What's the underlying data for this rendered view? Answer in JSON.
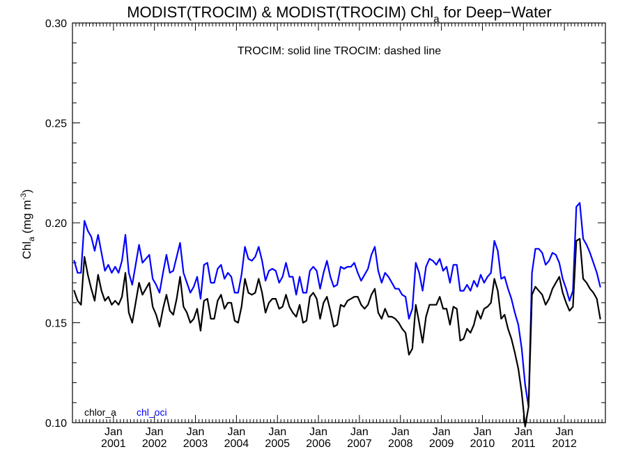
{
  "chart_data": {
    "type": "line",
    "title": {
      "main": "MODIST(TROCIM) & MODIST(TROCIM)  Chl",
      "sub": "a",
      "suffix": " for Deep−Water"
    },
    "annotation": "TROCIM: solid line   TROCIM: dashed line",
    "ylabel": {
      "main": "Chl",
      "sub": "a",
      "mid": " (mg m",
      "sup": "-3",
      "end": ")"
    },
    "ylim": [
      0.1,
      0.3
    ],
    "yticks": [
      "0.10",
      "0.15",
      "0.20",
      "0.25",
      "0.30"
    ],
    "x_start": "2000-01",
    "x_end": "2013-01",
    "xticks": [
      {
        "month": "Jan",
        "year": "2001",
        "date": "2001-01"
      },
      {
        "month": "Jan",
        "year": "2002",
        "date": "2002-01"
      },
      {
        "month": "Jan",
        "year": "2003",
        "date": "2003-01"
      },
      {
        "month": "Jan",
        "year": "2004",
        "date": "2004-01"
      },
      {
        "month": "Jan",
        "year": "2005",
        "date": "2005-01"
      },
      {
        "month": "Jan",
        "year": "2006",
        "date": "2006-01"
      },
      {
        "month": "Jan",
        "year": "2007",
        "date": "2007-01"
      },
      {
        "month": "Jan",
        "year": "2008",
        "date": "2008-01"
      },
      {
        "month": "Jan",
        "year": "2009",
        "date": "2009-01"
      },
      {
        "month": "Jan",
        "year": "2010",
        "date": "2010-01"
      },
      {
        "month": "Jan",
        "year": "2011",
        "date": "2011-01"
      },
      {
        "month": "Jan",
        "year": "2012",
        "date": "2012-01"
      }
    ],
    "grid": false,
    "legend_placement": "bottom-left",
    "series": [
      {
        "name": "chlor_a",
        "color": "#000000",
        "start": "2000-01",
        "values": [
          0.166,
          0.161,
          0.159,
          0.183,
          0.174,
          0.167,
          0.161,
          0.174,
          0.166,
          0.161,
          0.163,
          0.159,
          0.161,
          0.159,
          0.163,
          0.175,
          0.155,
          0.15,
          0.16,
          0.17,
          0.164,
          0.167,
          0.17,
          0.158,
          0.154,
          0.148,
          0.157,
          0.164,
          0.156,
          0.154,
          0.162,
          0.173,
          0.158,
          0.155,
          0.15,
          0.152,
          0.157,
          0.146,
          0.161,
          0.162,
          0.152,
          0.152,
          0.161,
          0.164,
          0.157,
          0.16,
          0.16,
          0.151,
          0.15,
          0.158,
          0.172,
          0.165,
          0.164,
          0.165,
          0.172,
          0.165,
          0.155,
          0.16,
          0.162,
          0.162,
          0.157,
          0.158,
          0.164,
          0.158,
          0.155,
          0.153,
          0.159,
          0.15,
          0.151,
          0.163,
          0.165,
          0.162,
          0.152,
          0.16,
          0.163,
          0.156,
          0.148,
          0.149,
          0.159,
          0.158,
          0.161,
          0.162,
          0.163,
          0.163,
          0.159,
          0.157,
          0.159,
          0.164,
          0.167,
          0.155,
          0.152,
          0.157,
          0.153,
          0.153,
          0.152,
          0.15,
          0.147,
          0.145,
          0.134,
          0.137,
          0.159,
          0.15,
          0.14,
          0.153,
          0.159,
          0.159,
          0.159,
          0.163,
          0.157,
          0.157,
          0.149,
          0.158,
          0.157,
          0.141,
          0.142,
          0.147,
          0.145,
          0.149,
          0.156,
          0.152,
          0.157,
          0.158,
          0.16,
          0.172,
          0.166,
          0.152,
          0.154,
          0.147,
          0.142,
          0.135,
          0.127,
          0.115,
          0.098,
          0.108,
          0.164,
          0.168,
          0.166,
          0.164,
          0.159,
          0.162,
          0.167,
          0.17,
          0.173,
          0.165,
          0.16,
          0.156,
          0.158,
          0.191,
          0.192,
          0.172,
          0.17,
          0.167,
          0.165,
          0.162,
          0.152
        ]
      },
      {
        "name": "chl_oci",
        "color": "#0000ff",
        "start": "2000-01",
        "values": [
          0.181,
          0.175,
          0.175,
          0.201,
          0.196,
          0.193,
          0.186,
          0.194,
          0.185,
          0.176,
          0.179,
          0.175,
          0.178,
          0.175,
          0.181,
          0.194,
          0.175,
          0.169,
          0.179,
          0.189,
          0.18,
          0.182,
          0.184,
          0.172,
          0.169,
          0.165,
          0.175,
          0.184,
          0.175,
          0.176,
          0.183,
          0.19,
          0.175,
          0.17,
          0.165,
          0.168,
          0.173,
          0.162,
          0.179,
          0.18,
          0.17,
          0.17,
          0.177,
          0.179,
          0.172,
          0.175,
          0.173,
          0.165,
          0.165,
          0.174,
          0.188,
          0.182,
          0.181,
          0.183,
          0.188,
          0.181,
          0.171,
          0.176,
          0.177,
          0.176,
          0.17,
          0.173,
          0.18,
          0.173,
          0.173,
          0.164,
          0.173,
          0.165,
          0.165,
          0.176,
          0.178,
          0.176,
          0.167,
          0.175,
          0.181,
          0.173,
          0.168,
          0.169,
          0.178,
          0.177,
          0.178,
          0.178,
          0.18,
          0.175,
          0.171,
          0.174,
          0.177,
          0.184,
          0.188,
          0.176,
          0.17,
          0.175,
          0.173,
          0.17,
          0.167,
          0.167,
          0.164,
          0.163,
          0.152,
          0.157,
          0.18,
          0.175,
          0.166,
          0.178,
          0.182,
          0.181,
          0.179,
          0.182,
          0.176,
          0.178,
          0.17,
          0.179,
          0.179,
          0.166,
          0.166,
          0.169,
          0.166,
          0.171,
          0.168,
          0.174,
          0.17,
          0.173,
          0.175,
          0.191,
          0.186,
          0.172,
          0.173,
          0.167,
          0.162,
          0.155,
          0.149,
          0.137,
          0.119,
          0.108,
          0.175,
          0.187,
          0.187,
          0.185,
          0.179,
          0.181,
          0.185,
          0.184,
          0.18,
          0.172,
          0.167,
          0.161,
          0.166,
          0.208,
          0.21,
          0.192,
          0.189,
          0.185,
          0.18,
          0.175,
          0.168
        ]
      }
    ]
  }
}
